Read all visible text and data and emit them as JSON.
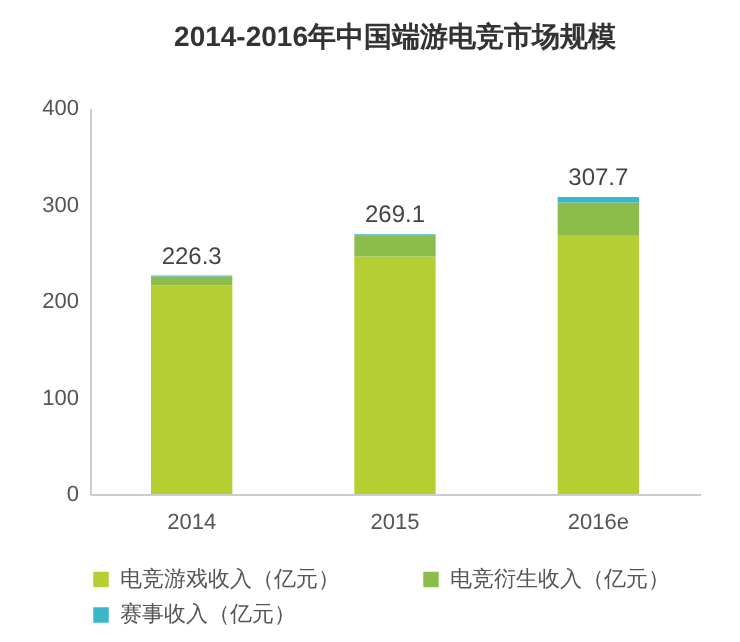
{
  "chart_data": {
    "type": "bar",
    "title": "2014-2016年中国端游电竞市场规模",
    "categories": [
      "2014",
      "2015",
      "2016e"
    ],
    "stacked": true,
    "series": [
      {
        "name": "电竞游戏收入（亿元）",
        "color": "#b5cf32",
        "values": [
          216,
          246,
          267.5
        ]
      },
      {
        "name": "电竞衍生收入（亿元）",
        "color": "#8cbd4c",
        "values": [
          9.3,
          21.5,
          34.5
        ]
      },
      {
        "name": "赛事收入（亿元）",
        "color": "#3ab7c8",
        "values": [
          1,
          1.6,
          5.7
        ]
      }
    ],
    "totals": [
      "226.3",
      "269.1",
      "307.7"
    ],
    "ylim": [
      0,
      400
    ],
    "yticks": [
      0,
      100,
      200,
      300,
      400
    ],
    "grid": false,
    "legend": "bottom"
  }
}
